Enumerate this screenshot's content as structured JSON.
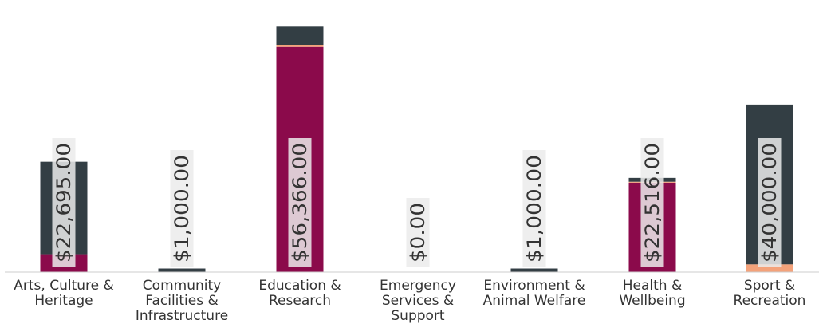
{
  "chart_data": {
    "type": "bar",
    "stacked": true,
    "categories": [
      [
        "Arts, Culture &",
        "Heritage"
      ],
      [
        "Community",
        "Facilities &",
        "Infrastructure"
      ],
      [
        "Education &",
        "Research"
      ],
      [
        "Emergency",
        "Services &",
        "Support"
      ],
      [
        "Environment &",
        "Animal Welfare"
      ],
      [
        "Health &",
        "Wellbeing"
      ],
      [
        "Sport &",
        "Recreation"
      ]
    ],
    "series": [
      {
        "color": "#8B0A4B",
        "values": [
          6000,
          0,
          75500,
          0,
          0,
          30000,
          0
        ]
      },
      {
        "color": "#F4A27A",
        "values": [
          0,
          0,
          500,
          0,
          0,
          300,
          2600
        ]
      },
      {
        "color": "#333E44",
        "values": [
          31000,
          1200,
          6300,
          0,
          1200,
          1300,
          53600
        ]
      }
    ],
    "data_labels": [
      "$22,695.00",
      "$1,000.00",
      "$56,366.00",
      "$0.00",
      "$1,000.00",
      "$22,516.00",
      "$40,000.00"
    ],
    "ylim": [
      0,
      88000
    ],
    "grid": false,
    "legend": "none"
  }
}
